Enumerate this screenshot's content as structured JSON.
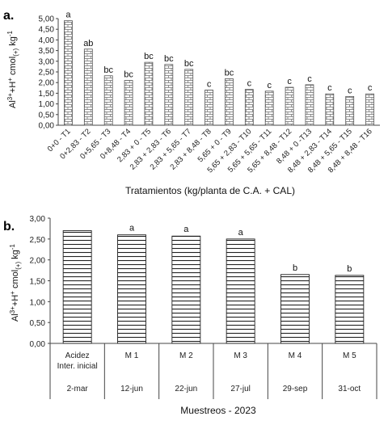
{
  "chart_data": [
    {
      "panel": "a.",
      "type": "bar",
      "ylabel": "Al³⁺+H⁺ cmol(+) kg⁻¹",
      "ylabel_parts": {
        "base": "Al",
        "sup1": "3+",
        "mid": "+H",
        "sup2": "+",
        "unit": " cmol",
        "sub": "(+)",
        "tail": " kg",
        "sup3": "-1"
      },
      "xlabel": "Tratamientos (kg/planta de C.A. + CAL)",
      "ylim": [
        0,
        5
      ],
      "yticks": [
        "0,00",
        "0,50",
        "1,00",
        "1,50",
        "2,00",
        "2,50",
        "3,00",
        "3,50",
        "4,00",
        "4,50",
        "5,00"
      ],
      "categories": [
        "0+0 - T1",
        "0+2,83 - T2",
        "0+5,65 - T3",
        "0+8,48 - T4",
        "2,83 + 0 - T5",
        "2,83 + 2,83 - T6",
        "2,83 + 5,65 - T7",
        "2,83 + 8,48 - T8",
        "5,65 + 0 - T9",
        "5,65 + 2,83 - T10",
        "5,65 + 5,65 - T11",
        "5,65 + 8,48 - T12",
        "8,48 + 0 -T13",
        "8,48 + 2,83 - T14",
        "8,48 + 5,65 - T15",
        "8,48 + 8,48 - T16"
      ],
      "values": [
        4.9,
        3.57,
        2.32,
        2.1,
        2.95,
        2.85,
        2.62,
        1.65,
        2.18,
        1.68,
        1.6,
        1.78,
        1.9,
        1.47,
        1.35,
        1.47
      ],
      "letters": [
        "a",
        "ab",
        "bc",
        "bc",
        "bc",
        "bc",
        "bc",
        "c",
        "bc",
        "c",
        "c",
        "c",
        "c",
        "c",
        "c",
        "c"
      ],
      "grid": false,
      "fill_pattern": "brick"
    },
    {
      "panel": "b.",
      "type": "bar",
      "ylabel": "Al³⁺+H⁺ cmol(+) kg⁻¹",
      "ylabel_parts": {
        "base": "Al",
        "sup1": "3+",
        "mid": "+H",
        "sup2": "+",
        "unit": " cmol",
        "sub": "(+)",
        "tail": " kg",
        "sup3": "-1"
      },
      "xlabel": "Muestreos - 2023",
      "ylim": [
        0,
        3
      ],
      "yticks": [
        "0,00",
        "0,50",
        "1,00",
        "1,50",
        "2,00",
        "2,50",
        "3,00"
      ],
      "categories": [
        "Acidez Inter. inicial",
        "M 1",
        "M 2",
        "M 3",
        "M 4",
        "M 5"
      ],
      "category_lines": [
        [
          "Acidez",
          "Inter. inicial"
        ],
        [
          "M 1"
        ],
        [
          "M 2"
        ],
        [
          "M 3"
        ],
        [
          "M 4"
        ],
        [
          "M 5"
        ]
      ],
      "dates": [
        "2-mar",
        "12-jun",
        "22-jun",
        "27-jul",
        "29-sep",
        "31-oct"
      ],
      "values": [
        2.7,
        2.6,
        2.57,
        2.5,
        1.65,
        1.63
      ],
      "letters": [
        "",
        "a",
        "a",
        "a",
        "b",
        "b"
      ],
      "grid": false,
      "fill_pattern": "horizontal-lines"
    }
  ]
}
